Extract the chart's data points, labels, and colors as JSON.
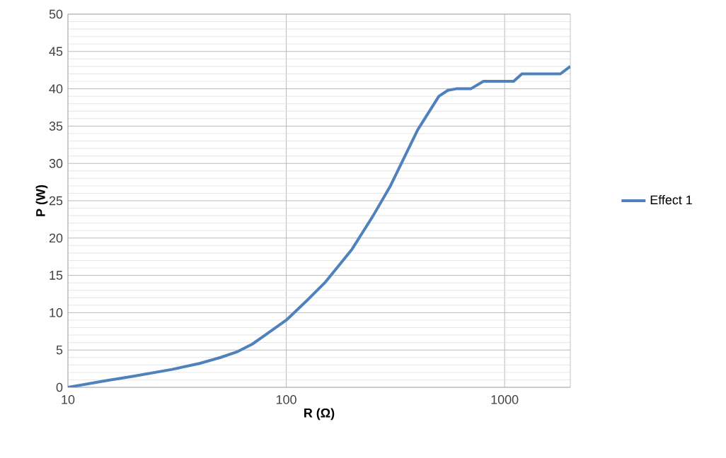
{
  "chart_data": {
    "type": "line",
    "xlabel": "R (Ω)",
    "ylabel": "P (W)",
    "log": "x",
    "x": [
      10,
      15,
      20,
      30,
      40,
      50,
      60,
      70,
      80,
      100,
      125,
      150,
      200,
      250,
      300,
      400,
      500,
      550,
      600,
      700,
      800,
      900,
      1000,
      1100,
      1200,
      1500,
      1800,
      2000
    ],
    "series": [
      {
        "name": "Effect 1",
        "color": "#4f81bd",
        "values": [
          0,
          0.9,
          1.5,
          2.4,
          3.2,
          4,
          4.8,
          5.8,
          7,
          9,
          11.7,
          14,
          18.5,
          23,
          27,
          34.5,
          39,
          39.8,
          40,
          40,
          41,
          41,
          41,
          41,
          42,
          42,
          42,
          43
        ]
      }
    ],
    "xlim": [
      10,
      2000
    ],
    "ylim": [
      0,
      50
    ],
    "xticks": [
      10,
      100,
      1000
    ],
    "yticks": [
      0,
      5,
      10,
      15,
      20,
      25,
      30,
      35,
      40,
      45,
      50
    ],
    "grid": true,
    "legend": "right",
    "marker": "none",
    "line_style": "solid"
  }
}
